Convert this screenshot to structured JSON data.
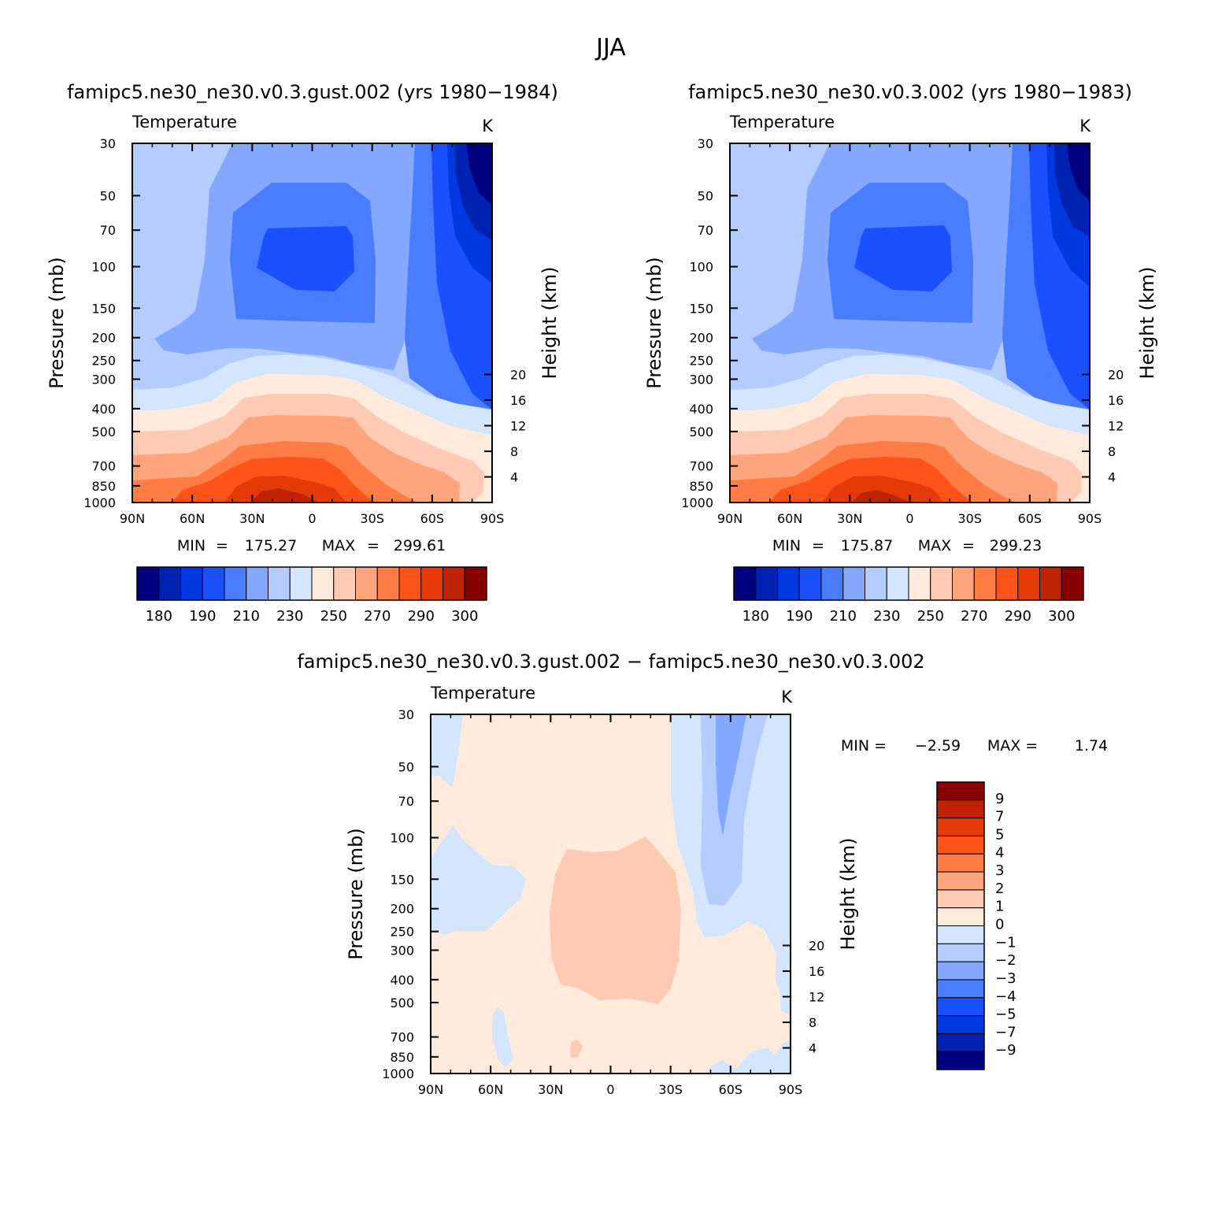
{
  "figure_title": "JJA",
  "colors": {
    "absolute_palette": [
      "#000080",
      "#0022b0",
      "#0038e0",
      "#1a50ff",
      "#4a7cff",
      "#84a8ff",
      "#b4ccff",
      "#d4e6ff",
      "#ffeadc",
      "#ffcab4",
      "#ffa57e",
      "#ff7c44",
      "#ff531a",
      "#e33a08",
      "#be2404",
      "#880000"
    ],
    "difference_palette": [
      "#000080",
      "#0022b0",
      "#0038e0",
      "#1a50ff",
      "#4a7cff",
      "#84a8ff",
      "#b4ccff",
      "#d4e6ff",
      "#ffeadc",
      "#ffcab4",
      "#ffa57e",
      "#ff7c44",
      "#ff531a",
      "#e33a08",
      "#be2404",
      "#880000"
    ]
  },
  "panels": [
    {
      "title": "famipc5.ne30_ne30.v0.3.gust.002 (yrs 1980−1984)",
      "field_label": "Temperature",
      "units": "K",
      "ylabel_left": "Pressure (mb)",
      "ylabel_right": "Height (km)",
      "min_label": "MIN",
      "min_value": "175.27",
      "max_label": "MAX",
      "max_value": "299.61",
      "colorbar_labels": [
        "180",
        "190",
        "210",
        "230",
        "250",
        "270",
        "290",
        "300"
      ]
    },
    {
      "title": "famipc5.ne30_ne30.v0.3.002 (yrs 1980−1983)",
      "field_label": "Temperature",
      "units": "K",
      "ylabel_left": "Pressure (mb)",
      "ylabel_right": "Height (km)",
      "min_label": "MIN",
      "min_value": "175.87",
      "max_label": "MAX",
      "max_value": "299.23",
      "colorbar_labels": [
        "180",
        "190",
        "210",
        "230",
        "250",
        "270",
        "290",
        "300"
      ]
    },
    {
      "title": "famipc5.ne30_ne30.v0.3.gust.002 − famipc5.ne30_ne30.v0.3.002",
      "field_label": "Temperature",
      "units": "K",
      "ylabel_left": "Pressure (mb)",
      "ylabel_right": "Height (km)",
      "min_label": "MIN =",
      "min_value": "−2.59",
      "max_label": "MAX =",
      "max_value": "1.74",
      "colorbar_labels": [
        "9",
        "7",
        "5",
        "4",
        "3",
        "2",
        "1",
        "0",
        "−1",
        "−2",
        "−3",
        "−4",
        "−5",
        "−7",
        "−9"
      ]
    }
  ],
  "chart_data": [
    {
      "type": "heatmap",
      "title": "famipc5.ne30_ne30.v0.3.gust.002 (yrs 1980−1984)",
      "xlabel": "",
      "ylabel": "Pressure (mb)",
      "y2label": "Height (km)",
      "x_ticks": [
        "90N",
        "60N",
        "30N",
        "0",
        "30S",
        "60S",
        "90S"
      ],
      "y_ticks": [
        "30",
        "50",
        "70",
        "100",
        "150",
        "200",
        "250",
        "300",
        "400",
        "500",
        "700",
        "850",
        "1000"
      ],
      "y2_ticks": [
        "20",
        "16",
        "12",
        "8",
        "4"
      ],
      "ylim": [
        1000,
        30
      ],
      "y_scale": "log",
      "contour_levels": [
        180,
        185,
        190,
        200,
        210,
        220,
        230,
        240,
        250,
        260,
        270,
        280,
        290,
        295,
        300
      ],
      "min": 175.27,
      "max": 299.61,
      "colorbar_ticks": [
        180,
        190,
        210,
        230,
        250,
        270,
        290,
        300
      ]
    },
    {
      "type": "heatmap",
      "title": "famipc5.ne30_ne30.v0.3.002 (yrs 1980−1983)",
      "xlabel": "",
      "ylabel": "Pressure (mb)",
      "y2label": "Height (km)",
      "x_ticks": [
        "90N",
        "60N",
        "30N",
        "0",
        "30S",
        "60S",
        "90S"
      ],
      "y_ticks": [
        "30",
        "50",
        "70",
        "100",
        "150",
        "200",
        "250",
        "300",
        "400",
        "500",
        "700",
        "850",
        "1000"
      ],
      "y2_ticks": [
        "20",
        "16",
        "12",
        "8",
        "4"
      ],
      "ylim": [
        1000,
        30
      ],
      "y_scale": "log",
      "contour_levels": [
        180,
        185,
        190,
        200,
        210,
        220,
        230,
        240,
        250,
        260,
        270,
        280,
        290,
        295,
        300
      ],
      "min": 175.87,
      "max": 299.23,
      "colorbar_ticks": [
        180,
        190,
        210,
        230,
        250,
        270,
        290,
        300
      ]
    },
    {
      "type": "heatmap",
      "title": "famipc5.ne30_ne30.v0.3.gust.002 − famipc5.ne30_ne30.v0.3.002",
      "xlabel": "",
      "ylabel": "Pressure (mb)",
      "y2label": "Height (km)",
      "x_ticks": [
        "90N",
        "60N",
        "30N",
        "0",
        "30S",
        "60S",
        "90S"
      ],
      "y_ticks": [
        "30",
        "50",
        "70",
        "100",
        "150",
        "200",
        "250",
        "300",
        "400",
        "500",
        "700",
        "850",
        "1000"
      ],
      "y2_ticks": [
        "20",
        "16",
        "12",
        "8",
        "4"
      ],
      "ylim": [
        1000,
        30
      ],
      "y_scale": "log",
      "contour_levels": [
        -9,
        -7,
        -5,
        -4,
        -3,
        -2,
        -1,
        0,
        1,
        2,
        3,
        4,
        5,
        7,
        9
      ],
      "min": -2.59,
      "max": 1.74,
      "colorbar_ticks": [
        9,
        7,
        5,
        4,
        3,
        2,
        1,
        0,
        -1,
        -2,
        -3,
        -4,
        -5,
        -7,
        -9
      ]
    }
  ]
}
